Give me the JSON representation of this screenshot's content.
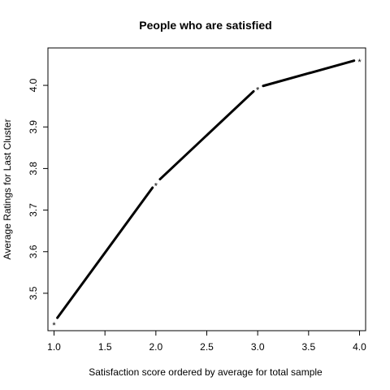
{
  "chart_data": {
    "type": "line",
    "title": "People who are satisfied",
    "xlabel": "Satisfaction score ordered by average for total sample",
    "ylabel": "Average Ratings for Last Cluster",
    "x": [
      1,
      2,
      3,
      4
    ],
    "y": [
      3.43,
      3.765,
      3.995,
      4.063
    ],
    "marker": "*",
    "xlim": [
      0.94,
      4.06
    ],
    "ylim": [
      3.41,
      4.09
    ],
    "xticks": [
      1.0,
      1.5,
      2.0,
      2.5,
      3.0,
      3.5,
      4.0
    ],
    "xtick_labels": [
      "1.0",
      "1.5",
      "2.0",
      "2.5",
      "3.0",
      "3.5",
      "4.0"
    ],
    "yticks": [
      3.5,
      3.6,
      3.7,
      3.8,
      3.9,
      4.0
    ],
    "ytick_labels": [
      "3.5",
      "3.6",
      "3.7",
      "3.8",
      "3.9",
      "4.0"
    ],
    "grid": false,
    "line_color": "#000000"
  }
}
